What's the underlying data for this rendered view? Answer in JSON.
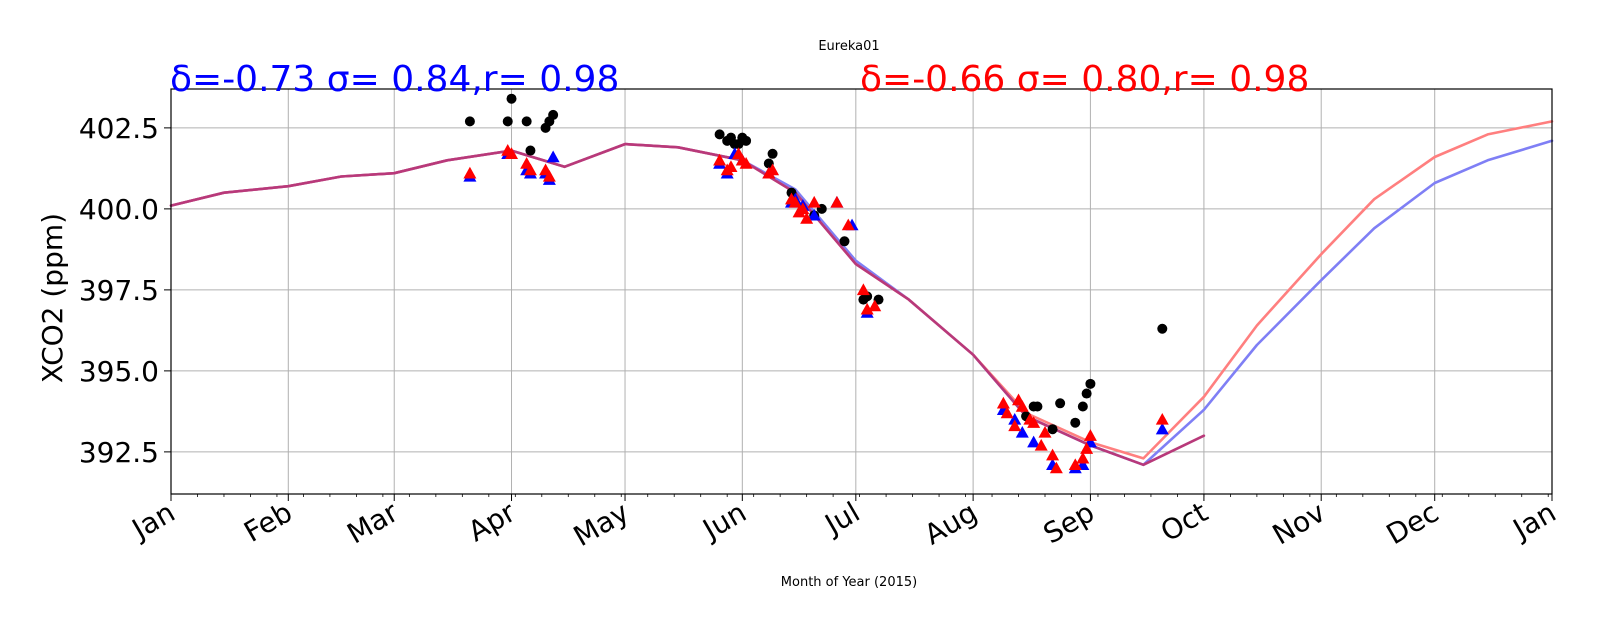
{
  "chart_data": {
    "type": "line",
    "title": "Eureka01",
    "xlabel": "Month of Year (2015)",
    "ylabel": "XCO2 (ppm)",
    "xlim": [
      "2015-01-01",
      "2016-01-01"
    ],
    "ylim": [
      391.2,
      403.7
    ],
    "grid": true,
    "x_ticks": [
      {
        "date": "2015-01-01",
        "label": "Jan"
      },
      {
        "date": "2015-02-01",
        "label": "Feb"
      },
      {
        "date": "2015-03-01",
        "label": "Mar"
      },
      {
        "date": "2015-04-01",
        "label": "Apr"
      },
      {
        "date": "2015-05-01",
        "label": "May"
      },
      {
        "date": "2015-06-01",
        "label": "Jun"
      },
      {
        "date": "2015-07-01",
        "label": "Jul"
      },
      {
        "date": "2015-08-01",
        "label": "Aug"
      },
      {
        "date": "2015-09-01",
        "label": "Sep"
      },
      {
        "date": "2015-10-01",
        "label": "Oct"
      },
      {
        "date": "2015-11-01",
        "label": "Nov"
      },
      {
        "date": "2015-12-01",
        "label": "Dec"
      },
      {
        "date": "2016-01-01",
        "label": "Jan"
      }
    ],
    "y_ticks": [
      392.5,
      395.0,
      397.5,
      400.0,
      402.5
    ],
    "y_tick_labels": [
      "392.5",
      "395.0",
      "397.5",
      "400.0",
      "402.5"
    ],
    "annotations": [
      {
        "text": "δ=-0.73 σ= 0.84,r= 0.98",
        "color": "#0000ff",
        "position": "top-left"
      },
      {
        "text": "δ=-0.66 σ= 0.80,r= 0.98",
        "color": "#ff0000",
        "position": "top-center"
      }
    ],
    "series": [
      {
        "style": "line",
        "color": "#7f7ff5",
        "x": [
          "2015-01-01",
          "2015-01-15",
          "2015-02-01",
          "2015-02-15",
          "2015-03-01",
          "2015-03-15",
          "2015-04-01",
          "2015-04-15",
          "2015-05-01",
          "2015-05-15",
          "2015-06-01",
          "2015-06-15",
          "2015-07-01",
          "2015-07-15",
          "2015-08-01",
          "2015-08-15",
          "2015-09-01",
          "2015-09-15",
          "2015-10-01",
          "2015-10-15",
          "2015-11-01",
          "2015-11-15",
          "2015-12-01",
          "2015-12-15",
          "2016-01-01"
        ],
        "y": [
          400.1,
          400.5,
          400.7,
          401.0,
          401.1,
          401.5,
          401.8,
          401.3,
          402.0,
          401.9,
          401.5,
          400.6,
          398.4,
          397.2,
          395.5,
          393.6,
          392.7,
          392.1,
          393.8,
          395.8,
          397.8,
          399.4,
          400.8,
          401.5,
          402.1
        ]
      },
      {
        "style": "line",
        "color": "#ff7f7f",
        "x": [
          "2015-01-01",
          "2015-01-15",
          "2015-02-01",
          "2015-02-15",
          "2015-03-01",
          "2015-03-15",
          "2015-04-01",
          "2015-04-15",
          "2015-05-01",
          "2015-05-15",
          "2015-06-01",
          "2015-06-15",
          "2015-07-01",
          "2015-07-15",
          "2015-08-01",
          "2015-08-15",
          "2015-09-01",
          "2015-09-15",
          "2015-10-01",
          "2015-10-15",
          "2015-11-01",
          "2015-11-15",
          "2015-12-01",
          "2015-12-15",
          "2016-01-01"
        ],
        "y": [
          400.1,
          400.5,
          400.7,
          401.0,
          401.1,
          401.5,
          401.8,
          401.3,
          402.0,
          401.9,
          401.5,
          400.5,
          398.3,
          397.2,
          395.5,
          393.7,
          392.8,
          392.3,
          394.2,
          396.4,
          398.6,
          400.3,
          401.6,
          402.3,
          402.7
        ]
      },
      {
        "style": "line",
        "color": "#b8397a",
        "x": [
          "2015-01-01",
          "2015-01-15",
          "2015-02-01",
          "2015-02-15",
          "2015-03-01",
          "2015-03-15",
          "2015-04-01",
          "2015-04-15",
          "2015-05-01",
          "2015-05-15",
          "2015-06-01",
          "2015-06-15",
          "2015-07-01",
          "2015-07-15",
          "2015-08-01",
          "2015-08-15",
          "2015-09-01",
          "2015-09-15",
          "2015-10-01"
        ],
        "y": [
          400.1,
          400.5,
          400.7,
          401.0,
          401.1,
          401.5,
          401.8,
          401.3,
          402.0,
          401.9,
          401.5,
          400.5,
          398.3,
          397.2,
          395.5,
          393.6,
          392.7,
          392.1,
          393.0
        ]
      },
      {
        "style": "markers",
        "marker": "circle",
        "color": "#000000",
        "x": [
          "2015-03-21",
          "2015-03-31",
          "2015-04-01",
          "2015-04-05",
          "2015-04-06",
          "2015-04-10",
          "2015-04-11",
          "2015-04-12",
          "2015-05-26",
          "2015-05-28",
          "2015-05-29",
          "2015-05-30",
          "2015-05-31",
          "2015-06-01",
          "2015-06-02",
          "2015-06-08",
          "2015-06-09",
          "2015-06-14",
          "2015-06-20",
          "2015-06-22",
          "2015-06-28",
          "2015-07-03",
          "2015-07-04",
          "2015-07-07",
          "2015-08-15",
          "2015-08-17",
          "2015-08-18",
          "2015-08-22",
          "2015-08-24",
          "2015-08-28",
          "2015-08-30",
          "2015-08-31",
          "2015-09-01",
          "2015-09-20"
        ],
        "y": [
          402.7,
          402.7,
          403.4,
          402.7,
          401.8,
          402.5,
          402.7,
          402.9,
          402.3,
          402.1,
          402.2,
          402.0,
          402.0,
          402.2,
          402.1,
          401.4,
          401.7,
          400.5,
          399.8,
          400.0,
          399.0,
          397.2,
          397.3,
          397.2,
          393.6,
          393.9,
          393.9,
          393.2,
          394.0,
          393.4,
          393.9,
          394.3,
          394.6,
          396.3
        ]
      },
      {
        "style": "markers",
        "marker": "triangle",
        "color": "#0000ff",
        "x": [
          "2015-03-21",
          "2015-03-31",
          "2015-04-05",
          "2015-04-06",
          "2015-04-10",
          "2015-04-11",
          "2015-04-12",
          "2015-05-26",
          "2015-05-28",
          "2015-05-30",
          "2015-06-01",
          "2015-06-08",
          "2015-06-14",
          "2015-06-15",
          "2015-06-17",
          "2015-06-20",
          "2015-06-26",
          "2015-06-30",
          "2015-07-04",
          "2015-08-09",
          "2015-08-12",
          "2015-08-14",
          "2015-08-17",
          "2015-08-22",
          "2015-08-28",
          "2015-08-30",
          "2015-09-01",
          "2015-09-20"
        ],
        "y": [
          401.0,
          401.7,
          401.2,
          401.1,
          401.1,
          400.9,
          401.6,
          401.4,
          401.1,
          401.7,
          401.5,
          401.1,
          400.2,
          400.3,
          400.1,
          399.8,
          400.2,
          399.5,
          396.8,
          393.8,
          393.5,
          393.1,
          392.8,
          392.1,
          392.0,
          392.1,
          392.8,
          393.2
        ]
      },
      {
        "style": "markers",
        "marker": "triangle",
        "color": "#ff0000",
        "x": [
          "2015-03-21",
          "2015-03-31",
          "2015-04-01",
          "2015-04-05",
          "2015-04-06",
          "2015-04-10",
          "2015-04-11",
          "2015-05-26",
          "2015-05-28",
          "2015-05-29",
          "2015-05-31",
          "2015-06-01",
          "2015-06-02",
          "2015-06-08",
          "2015-06-09",
          "2015-06-14",
          "2015-06-15",
          "2015-06-16",
          "2015-06-17",
          "2015-06-18",
          "2015-06-20",
          "2015-06-26",
          "2015-06-29",
          "2015-07-03",
          "2015-07-04",
          "2015-07-06",
          "2015-08-09",
          "2015-08-10",
          "2015-08-12",
          "2015-08-13",
          "2015-08-14",
          "2015-08-16",
          "2015-08-17",
          "2015-08-19",
          "2015-08-20",
          "2015-08-22",
          "2015-08-23",
          "2015-08-28",
          "2015-08-30",
          "2015-08-31",
          "2015-09-01",
          "2015-09-20"
        ],
        "y": [
          401.1,
          401.8,
          401.7,
          401.4,
          401.2,
          401.2,
          401.0,
          401.5,
          401.2,
          401.3,
          401.7,
          401.5,
          401.4,
          401.1,
          401.2,
          400.3,
          400.2,
          399.9,
          400.0,
          399.7,
          400.2,
          400.2,
          399.5,
          397.5,
          396.9,
          397.0,
          394.0,
          393.7,
          393.3,
          394.1,
          393.9,
          393.5,
          393.4,
          392.7,
          393.1,
          392.4,
          392.0,
          392.1,
          392.3,
          392.6,
          393.0,
          393.5
        ]
      }
    ]
  }
}
